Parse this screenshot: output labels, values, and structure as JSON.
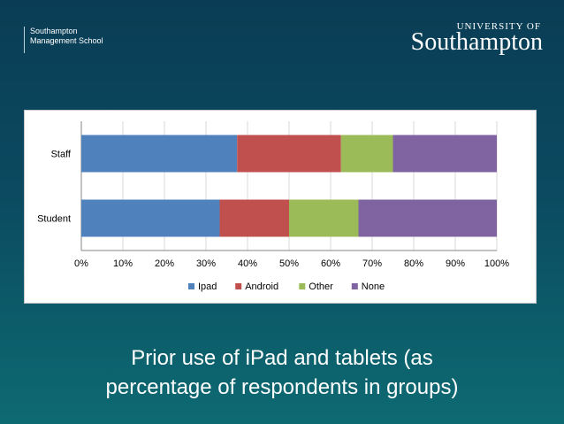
{
  "header": {
    "department_line1": "Southampton",
    "department_line2": "Management School",
    "university_of": "UNIVERSITY OF",
    "university_name": "Southampton"
  },
  "caption": {
    "line1": "Prior use of iPad and tablets (as",
    "line2": "percentage of respondents in groups)"
  },
  "chart_data": {
    "type": "bar",
    "orientation": "horizontal",
    "stacked": "percent",
    "title": "",
    "xlabel": "",
    "ylabel": "",
    "categories": [
      "Staff",
      "Student"
    ],
    "series": [
      {
        "name": "Ipad",
        "values": [
          37.5,
          33.3
        ],
        "color": "#4f81bd"
      },
      {
        "name": "Android",
        "values": [
          25.0,
          16.7
        ],
        "color": "#c0504d"
      },
      {
        "name": "Other",
        "values": [
          12.5,
          16.7
        ],
        "color": "#9bbb59"
      },
      {
        "name": "None",
        "values": [
          25.0,
          33.3
        ],
        "color": "#8064a2"
      }
    ],
    "xlim": [
      0,
      100
    ],
    "x_ticks": [
      "0%",
      "10%",
      "20%",
      "30%",
      "40%",
      "50%",
      "60%",
      "70%",
      "80%",
      "90%",
      "100%"
    ],
    "grid": true,
    "legend": "bottom"
  }
}
